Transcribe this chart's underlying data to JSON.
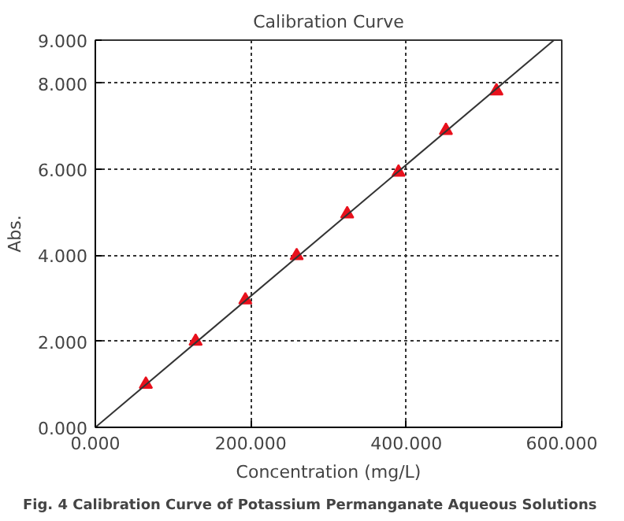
{
  "chart_data": {
    "type": "scatter",
    "title": "Calibration Curve",
    "xlabel": "Concentration (mg/L)",
    "ylabel": "Abs.",
    "annotations": [
      "Fig. 4  Calibration Curve of Potassium Permanganate Aqueous Solutions"
    ],
    "series": [
      {
        "color": "#e8101c",
        "marker": "triangle",
        "x": [
          65,
          129,
          193,
          259,
          324,
          390,
          451,
          516
        ],
        "values": [
          1.0,
          2.0,
          2.96,
          3.99,
          4.96,
          5.93,
          6.9,
          7.82
        ]
      },
      {
        "type": "line",
        "color": "#333333",
        "marker": "none",
        "line_style": "solid",
        "x": [
          0,
          590
        ],
        "values": [
          0,
          9
        ]
      }
    ],
    "xlim": [
      0,
      600
    ],
    "ylim": [
      0,
      9
    ],
    "xticks": [
      {
        "value": 0,
        "label": "0.000"
      },
      {
        "value": 200,
        "label": "200.000"
      },
      {
        "value": 400,
        "label": "400.000"
      },
      {
        "value": 600,
        "label": "600.000"
      }
    ],
    "yticks": [
      {
        "value": 0,
        "label": "0.000"
      },
      {
        "value": 2,
        "label": "2.000"
      },
      {
        "value": 4,
        "label": "4.000"
      },
      {
        "value": 6,
        "label": "6.000"
      },
      {
        "value": 8,
        "label": "8.000"
      },
      {
        "value": 9,
        "label": "9.000"
      }
    ],
    "grid": true
  }
}
